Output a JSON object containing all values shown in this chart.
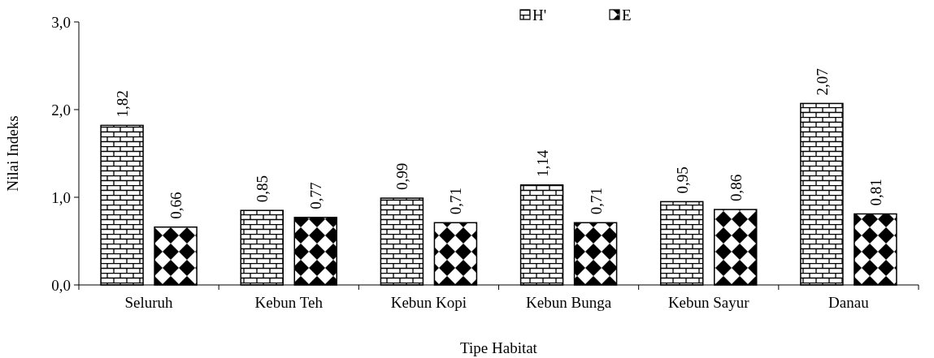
{
  "chart_data": {
    "type": "bar",
    "xlabel": "Tipe Habitat",
    "ylabel": "Nilai Indeks",
    "categories": [
      "Seluruh",
      "Kebun Teh",
      "Kebun Kopi",
      "Kebun Bunga",
      "Kebun Sayur",
      "Danau"
    ],
    "series": [
      {
        "name": "H'",
        "color": "#000000",
        "values": [
          1.82,
          0.85,
          0.99,
          1.14,
          0.95,
          2.07
        ],
        "value_labels": [
          "1,82",
          "0,85",
          "0,99",
          "1,14",
          "0,95",
          "2,07"
        ]
      },
      {
        "name": "E",
        "color": "#000000",
        "values": [
          0.66,
          0.77,
          0.71,
          0.71,
          0.86,
          0.81
        ],
        "value_labels": [
          "0,66",
          "0,77",
          "0,71",
          "0,71",
          "0,86",
          "0,81"
        ]
      }
    ],
    "ylim": [
      0,
      3
    ],
    "yticks": [
      {
        "value": 0,
        "label": "0,0"
      },
      {
        "value": 1,
        "label": "1,0"
      },
      {
        "value": 2,
        "label": "2,0"
      },
      {
        "value": 3,
        "label": "3,0"
      }
    ],
    "grid": false,
    "legend": "top"
  }
}
